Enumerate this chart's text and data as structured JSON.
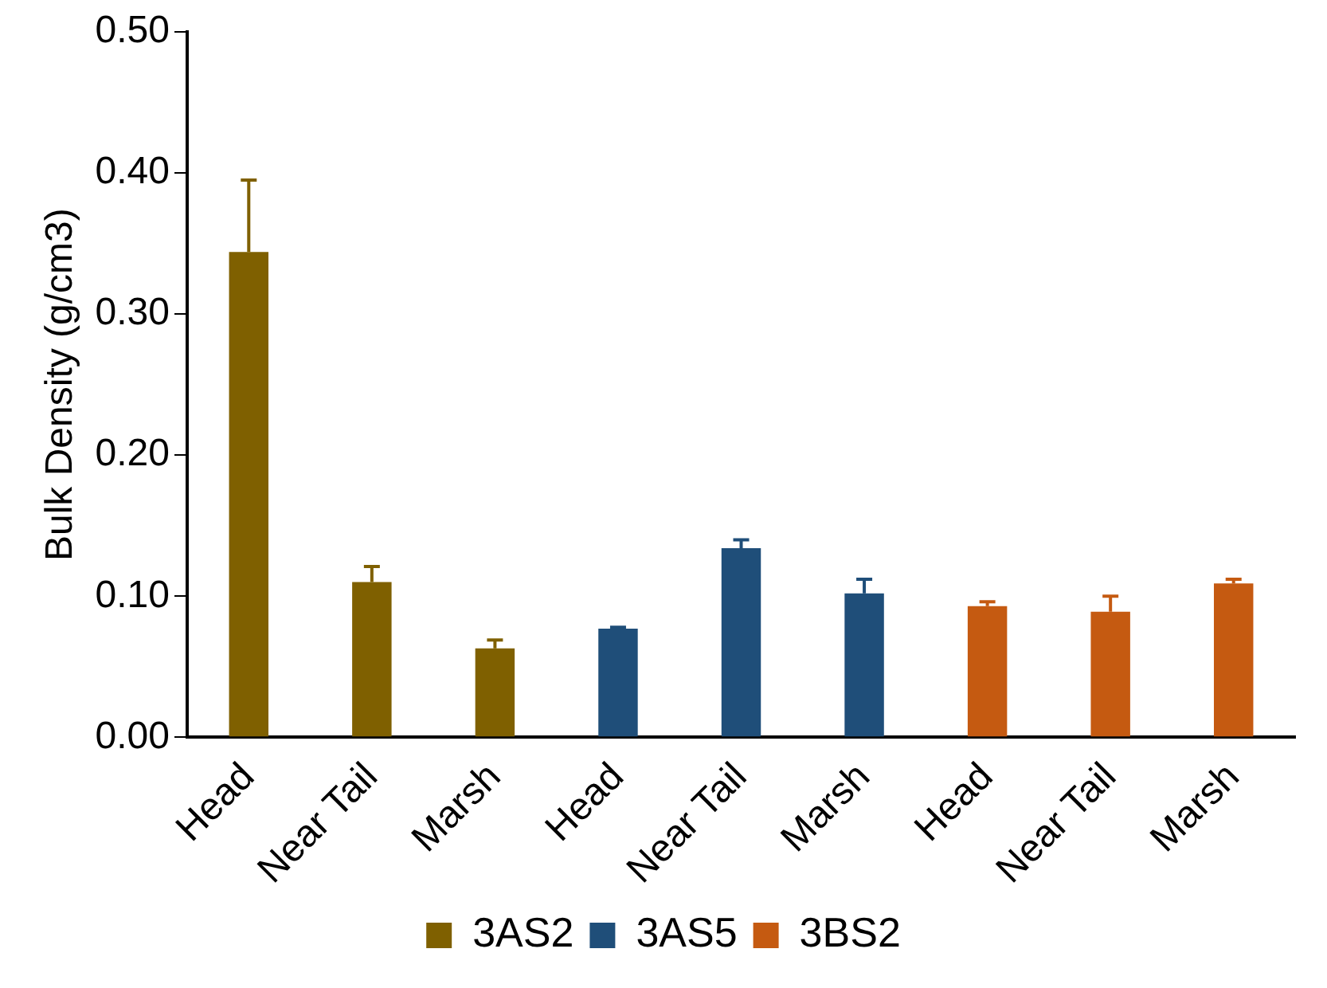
{
  "chart_data": {
    "type": "bar",
    "ylabel": "Bulk Density (g/cm3)",
    "categories": [
      "Head",
      "Near Tail",
      "Marsh",
      "Head",
      "Near Tail",
      "Marsh",
      "Head",
      "Near Tail",
      "Marsh"
    ],
    "series": [
      {
        "name": "3AS2",
        "color": "#7f6000",
        "values": [
          0.344,
          0.11,
          0.063,
          null,
          null,
          null,
          null,
          null,
          null
        ],
        "errors": [
          [
            0.344,
            0.395
          ],
          [
            0.11,
            0.121
          ],
          [
            0.063,
            0.069
          ],
          null,
          null,
          null,
          null,
          null,
          null
        ]
      },
      {
        "name": "3AS5",
        "color": "#1f4e79",
        "values": [
          null,
          null,
          null,
          0.077,
          0.134,
          0.102,
          null,
          null,
          null
        ],
        "errors": [
          null,
          null,
          null,
          [
            0.077,
            0.078
          ],
          [
            0.134,
            0.14
          ],
          [
            0.102,
            0.112
          ],
          null,
          null,
          null
        ]
      },
      {
        "name": "3BS2",
        "color": "#c55a11",
        "values": [
          null,
          null,
          null,
          null,
          null,
          null,
          0.093,
          0.089,
          0.109
        ],
        "errors": [
          null,
          null,
          null,
          null,
          null,
          null,
          [
            0.093,
            0.096
          ],
          [
            0.089,
            0.1
          ],
          [
            0.109,
            0.112
          ]
        ]
      }
    ],
    "ylim": [
      0,
      0.5
    ],
    "yticks": [
      {
        "value": 0,
        "label": "0.00"
      },
      {
        "value": 0.1,
        "label": "0.10"
      },
      {
        "value": 0.2,
        "label": "0.20"
      },
      {
        "value": 0.3,
        "label": "0.30"
      },
      {
        "value": 0.4,
        "label": "0.40"
      },
      {
        "value": 0.5,
        "label": "0.50"
      }
    ],
    "grid": false,
    "legend": "bottom"
  }
}
